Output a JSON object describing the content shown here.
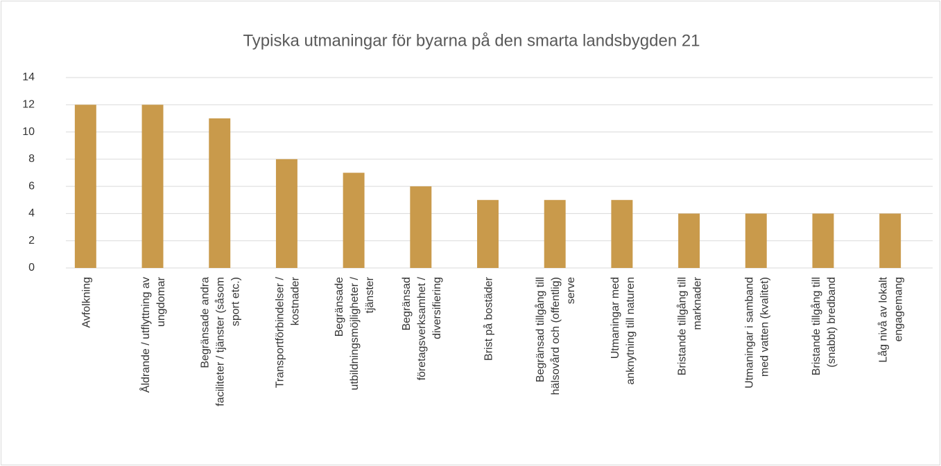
{
  "chart_data": {
    "type": "bar",
    "title": "Typiska utmaningar för byarna på den smarta landsbygden 21",
    "categories": [
      "Avfolkning",
      "Åldrande / utflyttning av ungdomar",
      "Begränsade andra faciliteter / tjänster (såsom sport etc.)",
      "Transportförbindelser / kostnader",
      "Begränsade utbildningsmöjligheter / tjänster",
      "Begränsad företagsverksamhet / diversifiering",
      "Brist på bostäder",
      "Begränsad tillgång till hälsovård och (offentlig) serve",
      "Utmaningar med anknytning till naturen",
      "Bristande tillgång till marknader",
      "Utmaningar i samband med vatten (kvalitet)",
      "Bristande tillgång till (snabbt) bredband",
      "Låg nivå av lokalt engagemang"
    ],
    "values": [
      12,
      12,
      11,
      8,
      7,
      6,
      5,
      5,
      5,
      4,
      4,
      4,
      4
    ],
    "color": "#c99a4b",
    "ylim": [
      0,
      14
    ],
    "yticks": [
      0,
      2,
      4,
      6,
      8,
      10,
      12,
      14
    ],
    "grid": true
  }
}
